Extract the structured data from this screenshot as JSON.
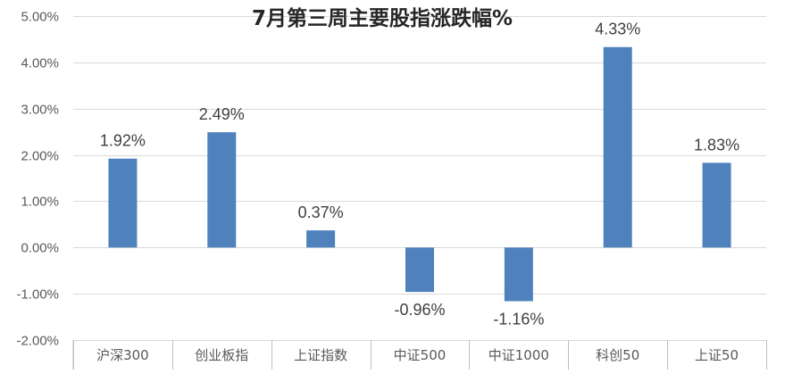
{
  "chart_data": {
    "type": "bar",
    "title": "7月第三周主要股指涨跌幅%",
    "categories": [
      "沪深300",
      "创业板指",
      "上证指数",
      "中证500",
      "中证1000",
      "科创50",
      "上证50"
    ],
    "values": [
      1.92,
      2.49,
      0.37,
      -0.96,
      -1.16,
      4.33,
      1.83
    ],
    "data_labels": [
      "1.92%",
      "2.49%",
      "0.37%",
      "-0.96%",
      "-1.16%",
      "4.33%",
      "1.83%"
    ],
    "ylim": [
      -2,
      5
    ],
    "yticks": [
      5,
      4,
      3,
      2,
      1,
      0,
      -1,
      -2
    ],
    "ytick_labels": [
      "5.00%",
      "4.00%",
      "3.00%",
      "2.00%",
      "1.00%",
      "0.00%",
      "-1.00%",
      "-2.00%"
    ],
    "xlabel": "",
    "ylabel": "",
    "grid": true,
    "legend": "none",
    "bar_color": "#4f81bd"
  }
}
